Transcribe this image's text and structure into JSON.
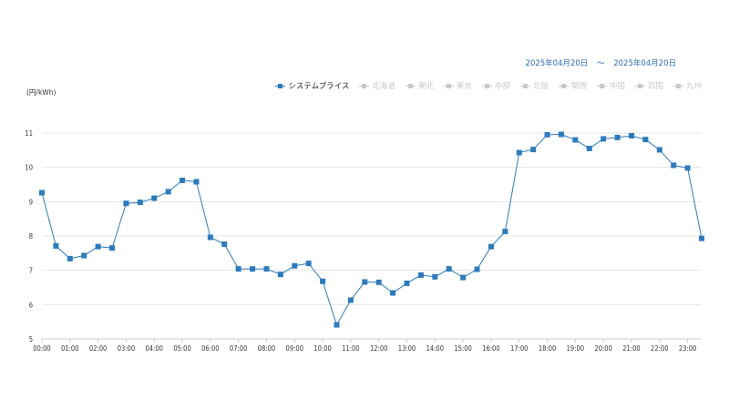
{
  "header": {
    "date_from": "2025年04月20日",
    "date_sep": "〜",
    "date_to": "2025年04月20日"
  },
  "legend": [
    {
      "label": "システムプライス",
      "active": true
    },
    {
      "label": "北海道",
      "active": false
    },
    {
      "label": "東北",
      "active": false
    },
    {
      "label": "東京",
      "active": false
    },
    {
      "label": "中部",
      "active": false
    },
    {
      "label": "北陸",
      "active": false
    },
    {
      "label": "関西",
      "active": false
    },
    {
      "label": "中国",
      "active": false
    },
    {
      "label": "四国",
      "active": false
    },
    {
      "label": "九州",
      "active": false
    }
  ],
  "colors": {
    "series": "#2e7bbb",
    "grid": "#e6e6e6",
    "date_text": "#2c6fb5",
    "inactive_legend": "#c9c9c9"
  },
  "chart_data": {
    "type": "line",
    "title": "",
    "xlabel": "",
    "ylabel": "(円/kWh)",
    "ylim": [
      5,
      11
    ],
    "yticks": [
      5,
      6,
      7,
      8,
      9,
      10,
      11
    ],
    "grid": true,
    "legend_position": "top-right",
    "xtick_labels": [
      "00:00",
      "01:00",
      "02:00",
      "03:00",
      "04:00",
      "05:00",
      "06:00",
      "07:00",
      "08:00",
      "09:00",
      "10:00",
      "11:00",
      "12:00",
      "13:00",
      "14:00",
      "15:00",
      "16:00",
      "17:00",
      "18:00",
      "19:00",
      "20:00",
      "21:00",
      "22:00",
      "23:00"
    ],
    "series": [
      {
        "name": "システムプライス",
        "values": [
          9.26,
          7.71,
          7.34,
          7.43,
          7.69,
          7.65,
          8.95,
          8.98,
          9.1,
          9.29,
          9.62,
          9.58,
          7.96,
          7.76,
          7.04,
          7.04,
          7.04,
          6.88,
          7.13,
          7.2,
          6.68,
          5.41,
          6.13,
          6.66,
          6.65,
          6.34,
          6.62,
          6.86,
          6.81,
          7.04,
          6.79,
          7.03,
          7.69,
          8.13,
          10.43,
          10.52,
          10.95,
          10.96,
          10.8,
          10.55,
          10.83,
          10.87,
          10.92,
          10.81,
          10.51,
          10.06,
          9.98,
          7.93
        ]
      }
    ]
  }
}
